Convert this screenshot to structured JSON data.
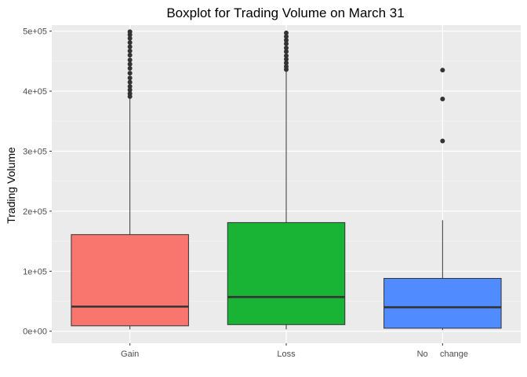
{
  "chart_data": {
    "type": "boxplot",
    "title": "Boxplot for Trading Volume on March 31",
    "xlabel": "",
    "ylabel": "Trading Volume",
    "ylim": [
      -20000,
      510000
    ],
    "yticks": [
      0,
      100000,
      200000,
      300000,
      400000,
      500000
    ],
    "ytick_labels": [
      "0e+00",
      "1e+05",
      "2e+05",
      "3e+05",
      "4e+05",
      "5e+05"
    ],
    "grid": true,
    "legend": "none",
    "categories": [
      "Gain",
      "Loss",
      "No     change"
    ],
    "boxes": [
      {
        "category": "Gain",
        "color": "#F8766D",
        "min": 3000,
        "q1": 9000,
        "median": 41000,
        "q3": 161000,
        "max": 389000,
        "outliers": [
          391000,
          396000,
          402000,
          408000,
          415000,
          422000,
          430000,
          438000,
          445000,
          452000,
          460000,
          467000,
          474000,
          481000,
          488000,
          494000,
          499000
        ]
      },
      {
        "category": "Loss",
        "color": "#19B335",
        "min": 3000,
        "q1": 11000,
        "median": 57000,
        "q3": 181000,
        "max": 434000,
        "outliers": [
          436000,
          441000,
          447000,
          453000,
          459000,
          466000,
          472000,
          479000,
          485000,
          491000,
          497000
        ]
      },
      {
        "category": "No     change",
        "color": "#508BFF",
        "min": 2000,
        "q1": 5000,
        "median": 40000,
        "q3": 88000,
        "max": 185000,
        "outliers": [
          317000,
          387000,
          435000
        ]
      }
    ]
  }
}
